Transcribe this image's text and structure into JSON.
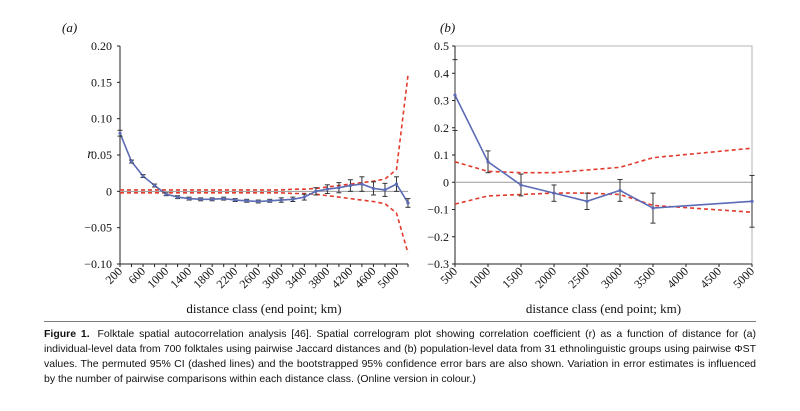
{
  "figure": {
    "label": "Figure 1.",
    "caption": "Folktale spatial autocorrelation analysis [46]. Spatial correlogram plot showing correlation coefficient (r) as a function of distance for (a) individual-level data from 700 folktales using pairwise Jaccard distances and (b) population-level data from 31 ethnolinguistic groups using pairwise ΦST values. The permuted 95% CI (dashed lines) and the bootstrapped 95% confidence error bars are also shown. Variation in error estimates is influenced by the number of pairwise comparisons within each distance class. (Online version in colour.)"
  },
  "colors": {
    "series": "#5b6bb5",
    "ci": "#e23b2e",
    "zero": "#9a9a9a",
    "axis": "#222222"
  },
  "chart_data": [
    {
      "type": "line",
      "panel_label": "(a)",
      "ylabel": "r",
      "xlabel": "distance class (end point; km)",
      "ylim": [
        -0.1,
        0.2
      ],
      "yticks": [
        -0.1,
        -0.05,
        0,
        0.05,
        0.1,
        0.15,
        0.2
      ],
      "ytick_labels": [
        "−0.10",
        "−0.05",
        "0",
        "0.05",
        "0.10",
        "0.15",
        "0.20"
      ],
      "categories": [
        "200",
        "400",
        "600",
        "800",
        "1000",
        "1200",
        "1400",
        "1600",
        "1800",
        "2000",
        "2200",
        "2400",
        "2600",
        "2800",
        "3000",
        "3200",
        "3400",
        "3600",
        "3800",
        "4000",
        "4200",
        "4400",
        "4600",
        "4800",
        "5000",
        "5200"
      ],
      "xtick_labels": [
        "200",
        "600",
        "1000",
        "1400",
        "1800",
        "2200",
        "2600",
        "3000",
        "3400",
        "3800",
        "4200",
        "4600",
        "5000"
      ],
      "series": [
        {
          "values": [
            0.08,
            0.041,
            0.021,
            0.008,
            -0.004,
            -0.008,
            -0.01,
            -0.011,
            -0.011,
            -0.01,
            -0.012,
            -0.013,
            -0.014,
            -0.013,
            -0.012,
            -0.011,
            -0.008,
            0.0,
            0.003,
            0.005,
            0.008,
            0.01,
            0.004,
            0.002,
            0.01,
            -0.016
          ],
          "errors": [
            0.004,
            0.002,
            0.002,
            0.002,
            0.002,
            0.002,
            0.002,
            0.002,
            0.002,
            0.002,
            0.002,
            0.002,
            0.002,
            0.002,
            0.003,
            0.003,
            0.004,
            0.005,
            0.006,
            0.007,
            0.008,
            0.01,
            0.009,
            0.009,
            0.01,
            0.006
          ]
        }
      ],
      "ci_upper": [
        0.002,
        0.002,
        0.002,
        0.002,
        0.002,
        0.002,
        0.002,
        0.002,
        0.002,
        0.002,
        0.002,
        0.002,
        0.002,
        0.002,
        0.002,
        0.003,
        0.003,
        0.004,
        0.006,
        0.008,
        0.01,
        0.012,
        0.014,
        0.017,
        0.03,
        0.16
      ],
      "ci_lower": [
        -0.002,
        -0.002,
        -0.002,
        -0.002,
        -0.002,
        -0.002,
        -0.002,
        -0.002,
        -0.002,
        -0.002,
        -0.002,
        -0.002,
        -0.002,
        -0.002,
        -0.002,
        -0.003,
        -0.003,
        -0.004,
        -0.006,
        -0.008,
        -0.01,
        -0.012,
        -0.014,
        -0.017,
        -0.03,
        -0.085
      ]
    },
    {
      "type": "line",
      "panel_label": "(b)",
      "xlabel": "distance class (end point; km)",
      "ylim": [
        -0.3,
        0.5
      ],
      "yticks": [
        -0.3,
        -0.2,
        -0.1,
        0,
        0.1,
        0.2,
        0.3,
        0.4,
        0.5
      ],
      "ytick_labels": [
        "−0.3",
        "−0.2",
        "−0.1",
        "0",
        "0.1",
        "0.2",
        "0.3",
        "0.4",
        "0.5"
      ],
      "categories": [
        "500",
        "1000",
        "1500",
        "2000",
        "2500",
        "3000",
        "3500",
        "5000"
      ],
      "xtick_labels": [
        "500",
        "1000",
        "1500",
        "2000",
        "2500",
        "3000",
        "3500",
        "4000",
        "4500",
        "5000"
      ],
      "x": [
        500,
        1000,
        1500,
        2000,
        2500,
        3000,
        3500,
        5000
      ],
      "series": [
        {
          "values": [
            0.32,
            0.075,
            -0.01,
            -0.04,
            -0.07,
            -0.03,
            -0.095,
            -0.07
          ],
          "errors": [
            0.13,
            0.04,
            0.04,
            0.03,
            0.03,
            0.04,
            0.055,
            0.095
          ]
        }
      ],
      "ci_upper": [
        0.075,
        0.04,
        0.035,
        0.035,
        0.045,
        0.055,
        0.09,
        0.125
      ],
      "ci_lower": [
        -0.08,
        -0.05,
        -0.045,
        -0.04,
        -0.04,
        -0.045,
        -0.085,
        -0.11
      ]
    }
  ]
}
